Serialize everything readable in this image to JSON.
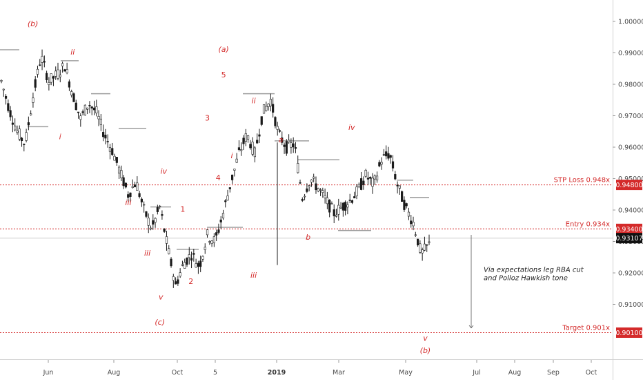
{
  "chart_data": {
    "type": "candlestick",
    "symbol_note": "",
    "y_ticks": [
      "1.00000",
      "0.99000",
      "0.98000",
      "0.97000",
      "0.96000",
      "0.95000",
      "0.94000",
      "0.93000",
      "0.92000",
      "0.91000"
    ],
    "x_ticks": [
      {
        "label": "Jun",
        "bold": false
      },
      {
        "label": "Aug",
        "bold": false
      },
      {
        "label": "Oct",
        "bold": false
      },
      {
        "label": "5",
        "bold": false
      },
      {
        "label": "2019",
        "bold": true
      },
      {
        "label": "Mar",
        "bold": false
      },
      {
        "label": "May",
        "bold": false
      },
      {
        "label": "Jul",
        "bold": false
      },
      {
        "label": "Aug",
        "bold": false
      },
      {
        "label": "Sep",
        "bold": false
      },
      {
        "label": "Oct",
        "bold": false
      }
    ],
    "ylim": [
      0.9005,
      1.0065
    ],
    "levels": [
      {
        "label": "STP Loss 0.948x",
        "value": 0.948,
        "tag": "0.94800"
      },
      {
        "label": "Entry 0.934x",
        "value": 0.934,
        "tag": "0.93400"
      },
      {
        "label": "Target 0.901x",
        "value": 0.901,
        "tag": "0.90100"
      }
    ],
    "current_price": {
      "value": 0.93107,
      "tag": "0.93107"
    },
    "price_path": [
      [
        0.976,
        0.983,
        0.975,
        0.981
      ],
      [
        0.981,
        0.984,
        0.97,
        0.972
      ],
      [
        0.972,
        0.974,
        0.962,
        0.965
      ],
      [
        0.965,
        0.968,
        0.957,
        0.961
      ],
      [
        0.961,
        0.978,
        0.96,
        0.976
      ],
      [
        0.976,
        0.992,
        0.974,
        0.989
      ],
      [
        0.989,
        0.99,
        0.978,
        0.981
      ],
      [
        0.981,
        0.985,
        0.976,
        0.983
      ],
      [
        0.983,
        0.988,
        0.98,
        0.986
      ],
      [
        0.986,
        0.988,
        0.975,
        0.977
      ],
      [
        0.977,
        0.978,
        0.966,
        0.969
      ],
      [
        0.969,
        0.976,
        0.967,
        0.974
      ],
      [
        0.974,
        0.977,
        0.968,
        0.971
      ],
      [
        0.971,
        0.975,
        0.962,
        0.964
      ],
      [
        0.964,
        0.966,
        0.956,
        0.959
      ],
      [
        0.959,
        0.961,
        0.949,
        0.952
      ],
      [
        0.952,
        0.954,
        0.942,
        0.945
      ],
      [
        0.945,
        0.952,
        0.943,
        0.949
      ],
      [
        0.949,
        0.95,
        0.938,
        0.94
      ],
      [
        0.94,
        0.942,
        0.931,
        0.934
      ],
      [
        0.934,
        0.945,
        0.933,
        0.941
      ],
      [
        0.941,
        0.943,
        0.926,
        0.928
      ],
      [
        0.928,
        0.93,
        0.914,
        0.916
      ],
      [
        0.916,
        0.925,
        0.912,
        0.923
      ],
      [
        0.923,
        0.929,
        0.919,
        0.926
      ],
      [
        0.926,
        0.928,
        0.918,
        0.922
      ],
      [
        0.922,
        0.935,
        0.921,
        0.932
      ],
      [
        0.932,
        0.934,
        0.927,
        0.93
      ],
      [
        0.93,
        0.941,
        0.929,
        0.939
      ],
      [
        0.939,
        0.951,
        0.938,
        0.949
      ],
      [
        0.949,
        0.961,
        0.948,
        0.958
      ],
      [
        0.958,
        0.967,
        0.956,
        0.964
      ],
      [
        0.964,
        0.966,
        0.956,
        0.958
      ],
      [
        0.958,
        0.973,
        0.957,
        0.971
      ],
      [
        0.971,
        0.978,
        0.968,
        0.975
      ],
      [
        0.975,
        0.977,
        0.962,
        0.964
      ],
      [
        0.964,
        0.966,
        0.956,
        0.96
      ],
      [
        0.96,
        0.963,
        0.957,
        0.961
      ],
      [
        0.961,
        0.962,
        0.922,
        0.944
      ],
      [
        0.944,
        0.953,
        0.942,
        0.95
      ],
      [
        0.95,
        0.954,
        0.945,
        0.947
      ],
      [
        0.947,
        0.949,
        0.94,
        0.943
      ],
      [
        0.943,
        0.948,
        0.937,
        0.939
      ],
      [
        0.939,
        0.945,
        0.934,
        0.941
      ],
      [
        0.941,
        0.946,
        0.937,
        0.943
      ],
      [
        0.943,
        0.949,
        0.94,
        0.946
      ],
      [
        0.946,
        0.953,
        0.944,
        0.951
      ],
      [
        0.951,
        0.955,
        0.945,
        0.948
      ],
      [
        0.948,
        0.959,
        0.946,
        0.956
      ],
      [
        0.956,
        0.961,
        0.952,
        0.958
      ],
      [
        0.958,
        0.959,
        0.946,
        0.948
      ],
      [
        0.948,
        0.95,
        0.938,
        0.941
      ],
      [
        0.941,
        0.943,
        0.933,
        0.936
      ],
      [
        0.936,
        0.938,
        0.924,
        0.926
      ],
      [
        0.926,
        0.931,
        0.921,
        0.929
      ]
    ],
    "annotations": [
      {
        "text": "(b)",
        "x": 0.035,
        "y": 0.9985,
        "num": false
      },
      {
        "text": "ii",
        "x": 0.108,
        "y": 0.9895,
        "num": false
      },
      {
        "text": "i",
        "x": 0.085,
        "y": 0.9625,
        "num": false
      },
      {
        "text": "(a)",
        "x": -0.105,
        "y": 0.9525,
        "num": false
      },
      {
        "text": "iii",
        "x": 0.21,
        "y": 0.9415,
        "num": false
      },
      {
        "text": "iv",
        "x": 0.275,
        "y": 0.9515,
        "num": false
      },
      {
        "text": "iii",
        "x": 0.245,
        "y": 0.9255,
        "num": false
      },
      {
        "text": "v",
        "x": 0.27,
        "y": 0.9115,
        "num": false
      },
      {
        "text": "(c)",
        "x": 0.268,
        "y": 0.9035,
        "num": false
      },
      {
        "text": "1",
        "x": 0.31,
        "y": 0.9395,
        "num": true
      },
      {
        "text": "2",
        "x": 0.325,
        "y": 0.9165,
        "num": true
      },
      {
        "text": "3",
        "x": 0.355,
        "y": 0.9685,
        "num": true
      },
      {
        "text": "4",
        "x": 0.375,
        "y": 0.9495,
        "num": true
      },
      {
        "text": "(a)",
        "x": 0.385,
        "y": 0.9903,
        "num": false
      },
      {
        "text": "5",
        "x": 0.385,
        "y": 0.9822,
        "num": true
      },
      {
        "text": "ii",
        "x": 0.44,
        "y": 0.974,
        "num": false
      },
      {
        "text": "i",
        "x": 0.4,
        "y": 0.9565,
        "num": false
      },
      {
        "text": "iii",
        "x": 0.44,
        "y": 0.9185,
        "num": false
      },
      {
        "text": "a",
        "x": 0.49,
        "y": 0.9615,
        "num": false
      },
      {
        "text": "b",
        "x": 0.54,
        "y": 0.9305,
        "num": false
      },
      {
        "text": "iv",
        "x": 0.62,
        "y": 0.9655,
        "num": false
      },
      {
        "text": "v",
        "x": 0.755,
        "y": 0.8985,
        "num": false
      },
      {
        "text": "(b)",
        "x": 0.755,
        "y": 0.8945,
        "num": false
      }
    ],
    "note_lines": [
      "Via expectations leg RBA cut",
      "and Polloz Hawkish tone"
    ],
    "colors": {
      "level": "#d42a2a",
      "candle": "#1a1a1a",
      "pivot": "#9e9e9e",
      "current_tag": "#111111"
    }
  }
}
